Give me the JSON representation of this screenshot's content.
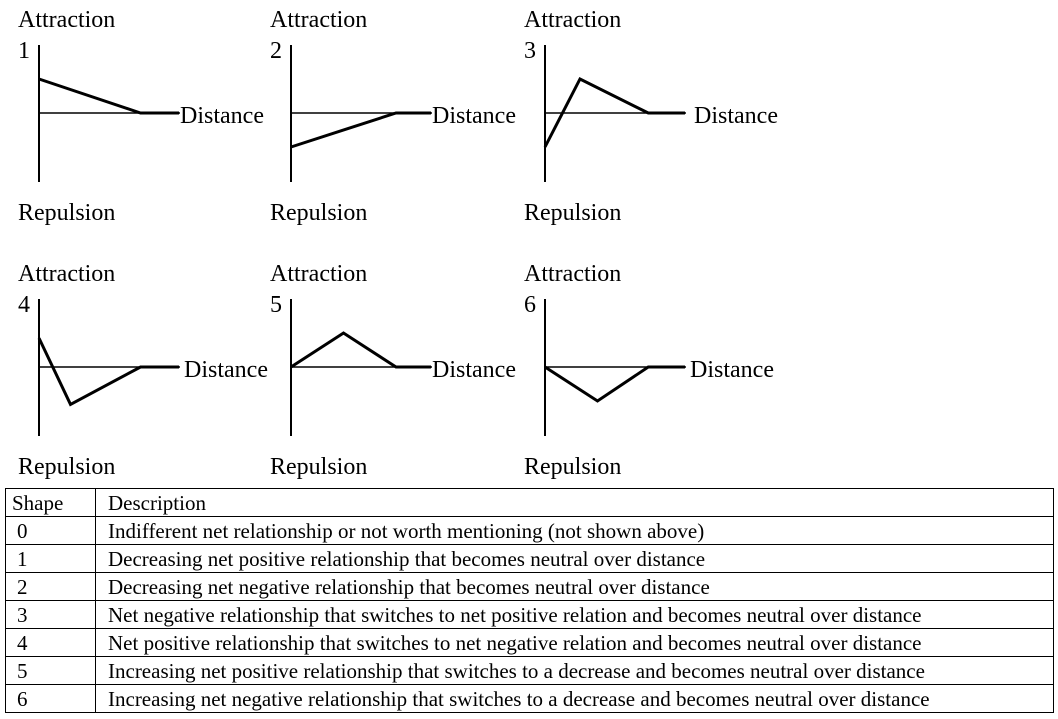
{
  "panels": [
    {
      "id": "1",
      "y_top_label": "Attraction",
      "y_bottom_label": "Repulsion",
      "x_label": "Distance",
      "points": [
        [
          0,
          1
        ],
        [
          2.9,
          0
        ],
        [
          4,
          0
        ]
      ]
    },
    {
      "id": "2",
      "y_top_label": "Attraction",
      "y_bottom_label": "Repulsion",
      "x_label": "Distance",
      "points": [
        [
          0,
          -1
        ],
        [
          3,
          0
        ],
        [
          4,
          0
        ]
      ]
    },
    {
      "id": "3",
      "y_top_label": "Attraction",
      "y_bottom_label": "Repulsion",
      "x_label": "Distance",
      "points": [
        [
          0,
          -1
        ],
        [
          1,
          1
        ],
        [
          2.95,
          0
        ],
        [
          4,
          0
        ]
      ]
    },
    {
      "id": "4",
      "y_top_label": "Attraction",
      "y_bottom_label": "Repulsion",
      "x_label": "Distance",
      "points": [
        [
          0,
          0.85
        ],
        [
          0.9,
          -1.1
        ],
        [
          2.9,
          0
        ],
        [
          4,
          0
        ]
      ]
    },
    {
      "id": "5",
      "y_top_label": "Attraction",
      "y_bottom_label": "Repulsion",
      "x_label": "Distance",
      "points": [
        [
          0,
          0
        ],
        [
          1.5,
          1
        ],
        [
          3,
          0
        ],
        [
          4,
          0
        ]
      ]
    },
    {
      "id": "6",
      "y_top_label": "Attraction",
      "y_bottom_label": "Repulsion",
      "x_label": "Distance",
      "points": [
        [
          0,
          0
        ],
        [
          1.5,
          -1
        ],
        [
          2.95,
          0
        ],
        [
          4,
          0
        ]
      ]
    }
  ],
  "table": {
    "headers": [
      "Shape",
      "Description"
    ],
    "rows": [
      [
        "0",
        "Indifferent net relationship or not worth mentioning (not shown above)"
      ],
      [
        "1",
        "Decreasing net positive relationship that becomes neutral over distance"
      ],
      [
        "2",
        "Decreasing net negative relationship that becomes neutral over distance"
      ],
      [
        "3",
        "Net negative relationship that switches to net positive relation and becomes neutral over distance"
      ],
      [
        "4",
        "Net positive relationship that switches to net negative relation and becomes neutral over distance"
      ],
      [
        "5",
        "Increasing net positive relationship that switches to a decrease and becomes neutral over distance"
      ],
      [
        "6",
        "Increasing net negative relationship that switches to a decrease and becomes neutral over distance"
      ]
    ]
  }
}
